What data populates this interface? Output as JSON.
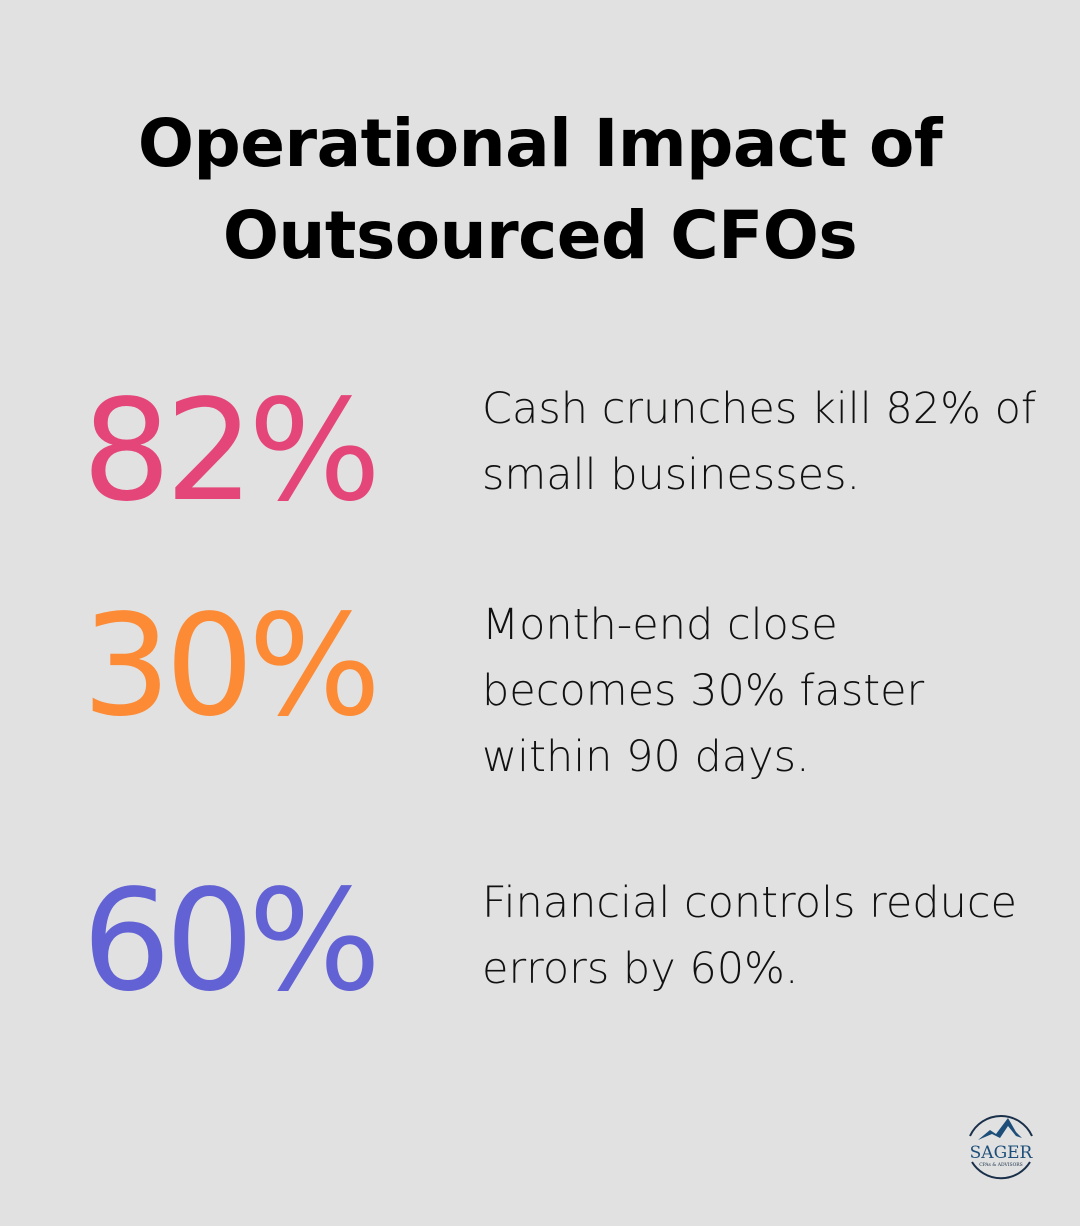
{
  "title_line1": "Operational Impact of",
  "title_line2": "Outsourced CFOs",
  "stats": [
    {
      "value": "82%",
      "color": "#e4467a",
      "text": "Cash crunches kill 82% of small businesses."
    },
    {
      "value": "30%",
      "color": "#fd8a35",
      "text": "Month-end close becomes 30% faster within 90 days."
    },
    {
      "value": "60%",
      "color": "#6262d4",
      "text": "Financial controls reduce errors by 60%."
    }
  ],
  "logo": {
    "name": "SAGER",
    "tagline": "CPAs & ADVISORS",
    "color": "#1d4e7a"
  }
}
